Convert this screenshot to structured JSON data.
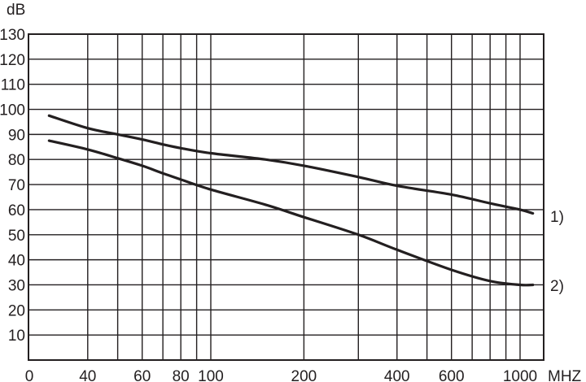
{
  "chart_data": {
    "type": "line",
    "title": "",
    "ylabel": "dB",
    "xlabel": "MHZ",
    "x_scale": "log",
    "xlim": [
      30,
      1100
    ],
    "ylim": [
      0,
      130
    ],
    "grid": true,
    "y_ticks": [
      "130",
      "120",
      "110",
      "100",
      "90",
      "80",
      "70",
      "60",
      "50",
      "40",
      "30",
      "20",
      "10",
      "0"
    ],
    "y_tick_values": [
      130,
      120,
      110,
      100,
      90,
      80,
      70,
      60,
      50,
      40,
      30,
      20,
      10,
      0
    ],
    "x_ticks": [
      "40",
      "60",
      "80",
      "100",
      "200",
      "400",
      "600",
      "1000"
    ],
    "x_tick_values": [
      40,
      60,
      80,
      100,
      200,
      400,
      600,
      1000
    ],
    "x_minor_gridlines": [
      50,
      70,
      90,
      300,
      500,
      700,
      800,
      900
    ],
    "series": [
      {
        "name": "1)",
        "color": "#231f20",
        "x": [
          30,
          40,
          50,
          60,
          70,
          80,
          100,
          150,
          200,
          300,
          400,
          600,
          800,
          1000,
          1100
        ],
        "y": [
          97.5,
          92.5,
          90,
          88,
          86,
          84.5,
          82.5,
          80,
          77.5,
          73,
          69.5,
          66,
          62.5,
          60,
          58.5
        ]
      },
      {
        "name": "2)",
        "color": "#231f20",
        "x": [
          30,
          40,
          50,
          60,
          70,
          80,
          100,
          150,
          200,
          300,
          400,
          600,
          800,
          1000,
          1100
        ],
        "y": [
          87.5,
          84,
          80.5,
          77.5,
          74.5,
          72,
          68,
          62,
          57,
          50,
          44,
          36,
          31.5,
          30,
          30
        ]
      }
    ]
  }
}
